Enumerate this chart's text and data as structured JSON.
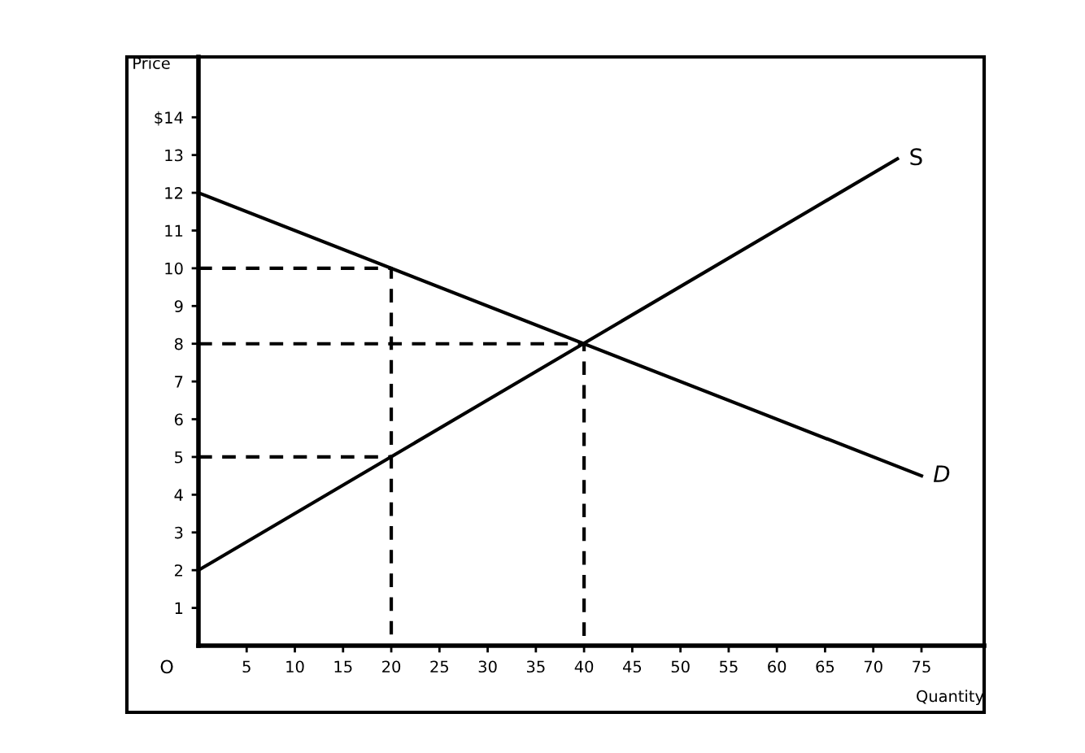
{
  "chart_data": {
    "type": "line",
    "xlabel": "Quantity",
    "ylabel": "Price",
    "xlim": [
      0,
      81.5
    ],
    "ylim": [
      0,
      15.6
    ],
    "xticks": [
      5,
      10,
      15,
      20,
      25,
      30,
      35,
      40,
      45,
      50,
      55,
      60,
      65,
      70,
      75
    ],
    "yticks": [
      1,
      2,
      3,
      4,
      5,
      6,
      7,
      8,
      9,
      10,
      11,
      12,
      13,
      {
        "value": 14,
        "label": "$14"
      }
    ],
    "grid": false,
    "legend": false,
    "marker": "none",
    "series": [
      {
        "name": "D",
        "color": "#000000",
        "x": [
          0,
          75
        ],
        "values": [
          12,
          4.5
        ],
        "line_style": "solid"
      },
      {
        "name": "S",
        "color": "#000000",
        "x": [
          0,
          72.5
        ],
        "values": [
          2,
          12.9
        ],
        "line_style": "solid"
      },
      {
        "color": "#000000",
        "x": [
          0,
          20,
          20
        ],
        "values": [
          10,
          10,
          0
        ],
        "line_style": "dashed"
      },
      {
        "color": "#000000",
        "x": [
          0,
          40,
          40
        ],
        "values": [
          8,
          8,
          0
        ],
        "line_style": "dashed"
      },
      {
        "color": "#000000",
        "x": [
          0,
          20
        ],
        "values": [
          5,
          5
        ],
        "line_style": "dashed"
      }
    ],
    "annotations": [
      "O"
    ]
  }
}
